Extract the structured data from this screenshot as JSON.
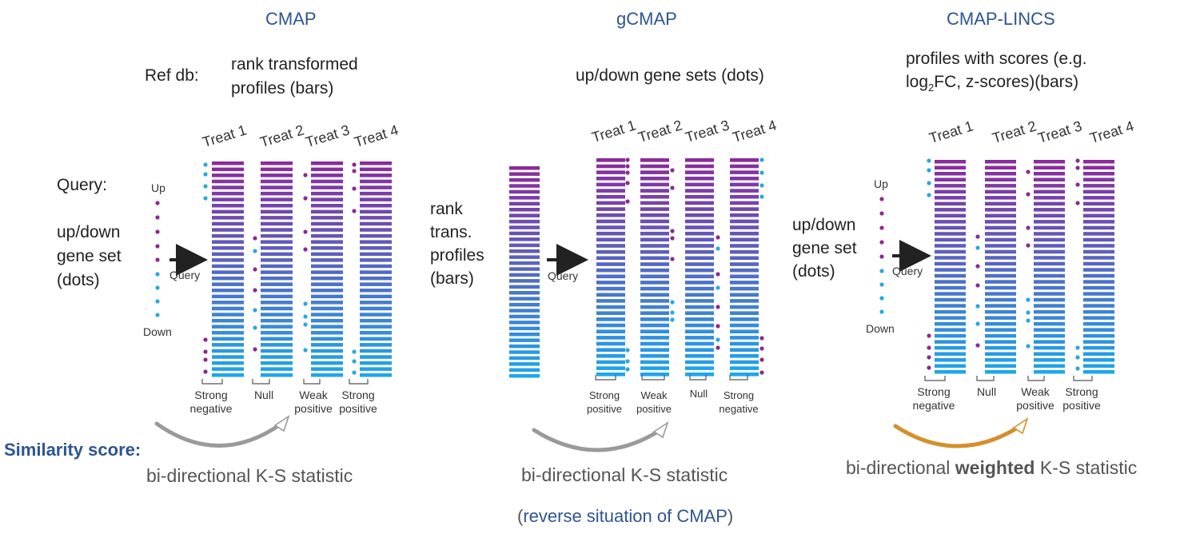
{
  "panels": [
    {
      "id": "cmap",
      "title": "CMAP",
      "ref_db_label": "Ref db:",
      "ref_db_desc_line1": "rank transformed",
      "ref_db_desc_line2": "profiles (bars)",
      "query_label": "Query:",
      "query_desc_line1": "up/down",
      "query_desc_line2": "gene set",
      "query_desc_line3": "(dots)",
      "up_label": "Up",
      "down_label": "Down",
      "arrow_label": "Query",
      "treatments": [
        "Treat 1",
        "Treat 2",
        "Treat 3",
        "Treat 4"
      ],
      "outcomes": [
        [
          "Strong",
          "negative"
        ],
        [
          "Null",
          ""
        ],
        [
          "Weak",
          "positive"
        ],
        [
          "Strong",
          "positive"
        ]
      ],
      "statistic": "bi-directional K-S statistic"
    },
    {
      "id": "gcmap",
      "title": "gCMAP",
      "ref_db_desc": "up/down gene sets (dots)",
      "query_desc_line1": "rank",
      "query_desc_line2": "trans.",
      "query_desc_line3": "profiles",
      "query_desc_line4": "(bars)",
      "arrow_label": "Query",
      "treatments": [
        "Treat 1",
        "Treat 2",
        "Treat 3",
        "Treat 4"
      ],
      "outcomes": [
        [
          "Strong",
          "positive"
        ],
        [
          "Weak",
          "positive"
        ],
        [
          "Null",
          ""
        ],
        [
          "Strong",
          "negative"
        ]
      ],
      "statistic": "bi-directional K-S statistic",
      "note_open": "(",
      "note": "reverse situation of CMAP",
      "note_close": ")"
    },
    {
      "id": "cmap-lincs",
      "title": "CMAP-LINCS",
      "ref_db_desc_line1": "profiles with scores (e.g.",
      "ref_db_desc_line2_pre": "log",
      "ref_db_desc_line2_sub": "2",
      "ref_db_desc_line2_post": "FC, z-scores)(bars)",
      "query_desc_line1": "up/down",
      "query_desc_line2": "gene set",
      "query_desc_line3": "(dots)",
      "up_label": "Up",
      "down_label": "Down",
      "arrow_label": "Query",
      "treatments": [
        "Treat 1",
        "Treat 2",
        "Treat 3",
        "Treat 4"
      ],
      "outcomes": [
        [
          "Strong",
          "negative"
        ],
        [
          "Null",
          ""
        ],
        [
          "Weak",
          "positive"
        ],
        [
          "Strong",
          "positive"
        ]
      ],
      "statistic_pre": "bi-directional ",
      "statistic_bold": "weighted",
      "statistic_post": " K-S statistic"
    }
  ],
  "similarity_label": "Similarity score:",
  "colors": {
    "title": "#2d5592",
    "bar_top": "#8a2b9a",
    "bar_bottom": "#1ea6ea",
    "dot_up": "#8b2a8f",
    "dot_down": "#29a7e1",
    "curve_gray": "#9a9a9a",
    "curve_orange": "#d4902c"
  }
}
